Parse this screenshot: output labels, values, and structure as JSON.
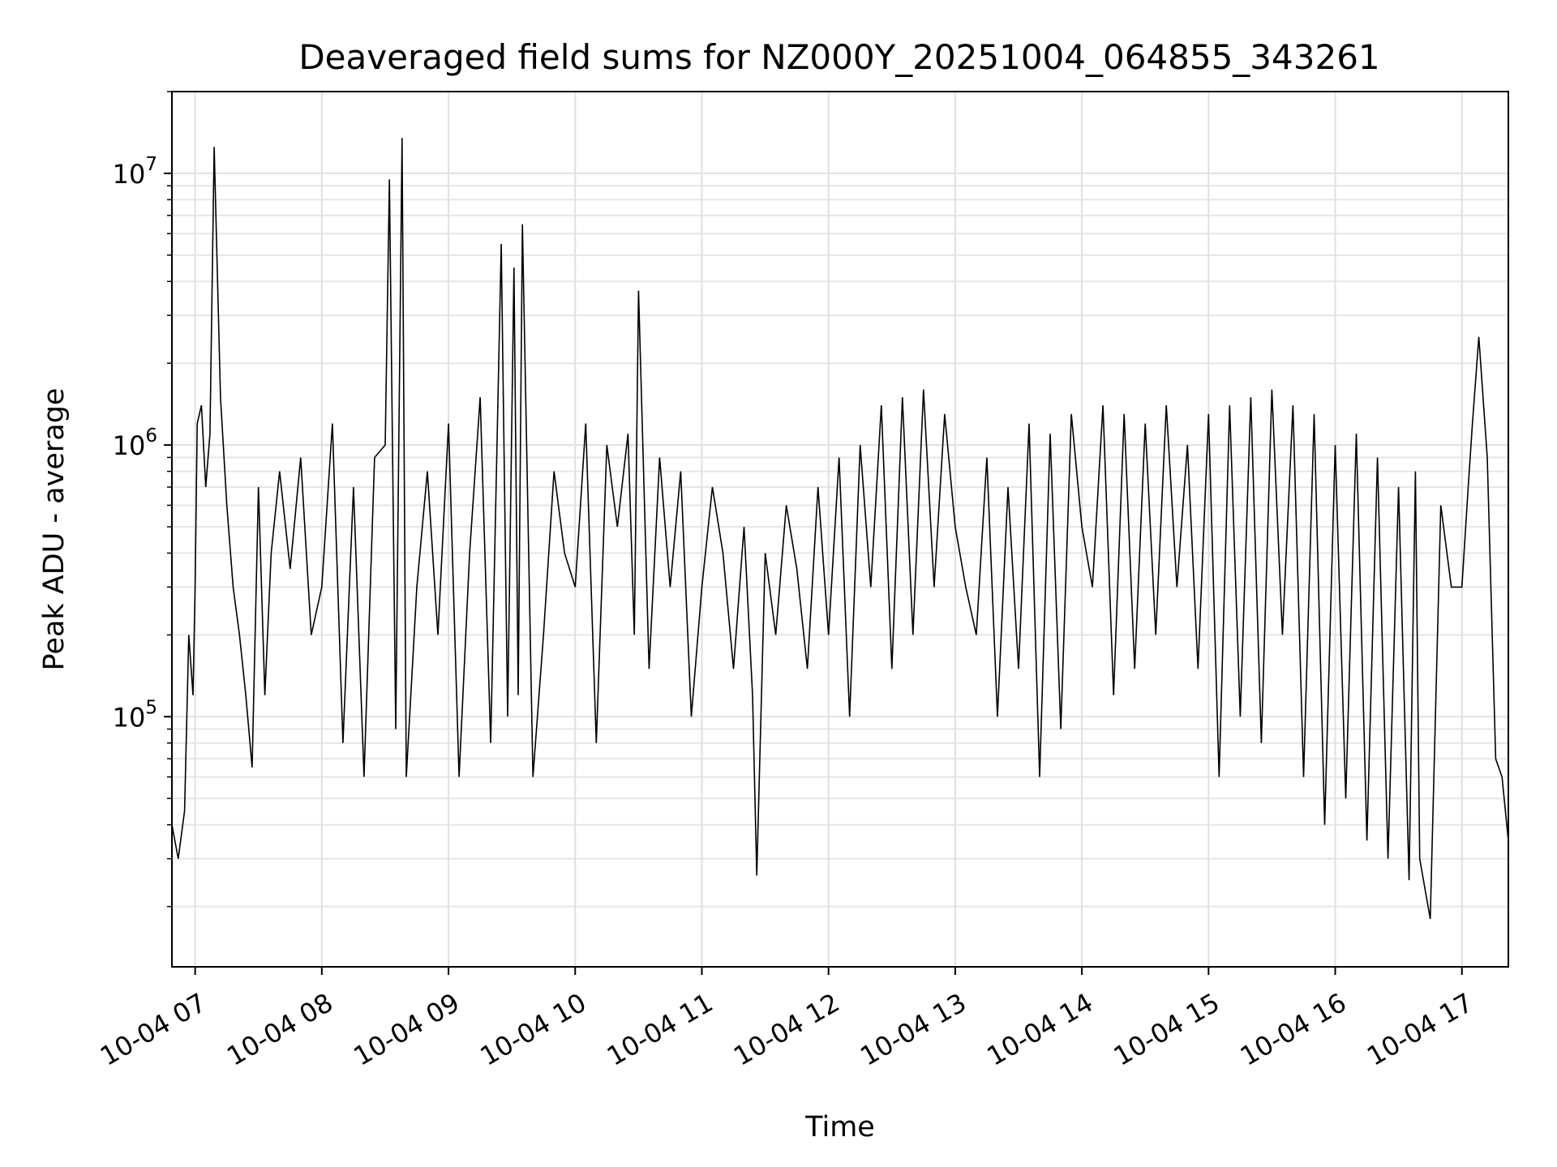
{
  "chart_data": {
    "type": "line",
    "title": "Deaveraged field sums for NZ000Y_20251004_064855_343261",
    "xlabel": "Time",
    "ylabel": "Peak ADU - average",
    "yscale": "log",
    "grid": true,
    "ylim": [
      12000,
      20000000
    ],
    "xlim": [
      "2025-10-04 06:49",
      "2025-10-04 17:22"
    ],
    "x_ticks": [
      {
        "t": "2025-10-04 07:00",
        "label": "10-04 07"
      },
      {
        "t": "2025-10-04 08:00",
        "label": "10-04 08"
      },
      {
        "t": "2025-10-04 09:00",
        "label": "10-04 09"
      },
      {
        "t": "2025-10-04 10:00",
        "label": "10-04 10"
      },
      {
        "t": "2025-10-04 11:00",
        "label": "10-04 11"
      },
      {
        "t": "2025-10-04 12:00",
        "label": "10-04 12"
      },
      {
        "t": "2025-10-04 13:00",
        "label": "10-04 13"
      },
      {
        "t": "2025-10-04 14:00",
        "label": "10-04 14"
      },
      {
        "t": "2025-10-04 15:00",
        "label": "10-04 15"
      },
      {
        "t": "2025-10-04 16:00",
        "label": "10-04 16"
      },
      {
        "t": "2025-10-04 17:00",
        "label": "10-04 17"
      }
    ],
    "y_ticks": [
      {
        "value": 100000,
        "base": "10",
        "exp": "5"
      },
      {
        "value": 1000000,
        "base": "10",
        "exp": "6"
      },
      {
        "value": 10000000,
        "base": "10",
        "exp": "7"
      }
    ],
    "series": [
      {
        "color": "#000000",
        "x": [
          "2025-10-04 06:49",
          "2025-10-04 06:52",
          "2025-10-04 06:55",
          "2025-10-04 06:57",
          "2025-10-04 06:59",
          "2025-10-04 07:00",
          "2025-10-04 07:01",
          "2025-10-04 07:03",
          "2025-10-04 07:05",
          "2025-10-04 07:07",
          "2025-10-04 07:09",
          "2025-10-04 07:12",
          "2025-10-04 07:15",
          "2025-10-04 07:18",
          "2025-10-04 07:21",
          "2025-10-04 07:24",
          "2025-10-04 07:27",
          "2025-10-04 07:30",
          "2025-10-04 07:33",
          "2025-10-04 07:36",
          "2025-10-04 07:40",
          "2025-10-04 07:45",
          "2025-10-04 07:50",
          "2025-10-04 07:55",
          "2025-10-04 08:00",
          "2025-10-04 08:05",
          "2025-10-04 08:10",
          "2025-10-04 08:15",
          "2025-10-04 08:20",
          "2025-10-04 08:25",
          "2025-10-04 08:30",
          "2025-10-04 08:32",
          "2025-10-04 08:35",
          "2025-10-04 08:38",
          "2025-10-04 08:40",
          "2025-10-04 08:45",
          "2025-10-04 08:50",
          "2025-10-04 08:55",
          "2025-10-04 09:00",
          "2025-10-04 09:05",
          "2025-10-04 09:10",
          "2025-10-04 09:15",
          "2025-10-04 09:20",
          "2025-10-04 09:25",
          "2025-10-04 09:28",
          "2025-10-04 09:31",
          "2025-10-04 09:33",
          "2025-10-04 09:35",
          "2025-10-04 09:40",
          "2025-10-04 09:45",
          "2025-10-04 09:50",
          "2025-10-04 09:55",
          "2025-10-04 10:00",
          "2025-10-04 10:05",
          "2025-10-04 10:10",
          "2025-10-04 10:15",
          "2025-10-04 10:20",
          "2025-10-04 10:25",
          "2025-10-04 10:28",
          "2025-10-04 10:30",
          "2025-10-04 10:35",
          "2025-10-04 10:40",
          "2025-10-04 10:45",
          "2025-10-04 10:50",
          "2025-10-04 10:55",
          "2025-10-04 11:00",
          "2025-10-04 11:05",
          "2025-10-04 11:10",
          "2025-10-04 11:15",
          "2025-10-04 11:20",
          "2025-10-04 11:24",
          "2025-10-04 11:26",
          "2025-10-04 11:30",
          "2025-10-04 11:35",
          "2025-10-04 11:40",
          "2025-10-04 11:45",
          "2025-10-04 11:50",
          "2025-10-04 11:55",
          "2025-10-04 12:00",
          "2025-10-04 12:05",
          "2025-10-04 12:10",
          "2025-10-04 12:15",
          "2025-10-04 12:20",
          "2025-10-04 12:25",
          "2025-10-04 12:30",
          "2025-10-04 12:35",
          "2025-10-04 12:40",
          "2025-10-04 12:45",
          "2025-10-04 12:50",
          "2025-10-04 12:55",
          "2025-10-04 13:00",
          "2025-10-04 13:05",
          "2025-10-04 13:10",
          "2025-10-04 13:15",
          "2025-10-04 13:20",
          "2025-10-04 13:25",
          "2025-10-04 13:30",
          "2025-10-04 13:35",
          "2025-10-04 13:40",
          "2025-10-04 13:45",
          "2025-10-04 13:50",
          "2025-10-04 13:55",
          "2025-10-04 14:00",
          "2025-10-04 14:05",
          "2025-10-04 14:10",
          "2025-10-04 14:15",
          "2025-10-04 14:20",
          "2025-10-04 14:25",
          "2025-10-04 14:30",
          "2025-10-04 14:35",
          "2025-10-04 14:40",
          "2025-10-04 14:45",
          "2025-10-04 14:50",
          "2025-10-04 14:55",
          "2025-10-04 15:00",
          "2025-10-04 15:05",
          "2025-10-04 15:10",
          "2025-10-04 15:15",
          "2025-10-04 15:20",
          "2025-10-04 15:25",
          "2025-10-04 15:30",
          "2025-10-04 15:35",
          "2025-10-04 15:40",
          "2025-10-04 15:45",
          "2025-10-04 15:50",
          "2025-10-04 15:55",
          "2025-10-04 16:00",
          "2025-10-04 16:05",
          "2025-10-04 16:10",
          "2025-10-04 16:15",
          "2025-10-04 16:20",
          "2025-10-04 16:25",
          "2025-10-04 16:30",
          "2025-10-04 16:35",
          "2025-10-04 16:38",
          "2025-10-04 16:40",
          "2025-10-04 16:45",
          "2025-10-04 16:50",
          "2025-10-04 16:55",
          "2025-10-04 17:00",
          "2025-10-04 17:03",
          "2025-10-04 17:05",
          "2025-10-04 17:08",
          "2025-10-04 17:12",
          "2025-10-04 17:16",
          "2025-10-04 17:19",
          "2025-10-04 17:22"
        ],
        "y": [
          40000,
          30000,
          45000,
          200000,
          120000,
          300000,
          1200000,
          1400000,
          700000,
          1100000,
          12500000,
          1500000,
          600000,
          300000,
          200000,
          120000,
          65000,
          700000,
          120000,
          400000,
          800000,
          350000,
          900000,
          200000,
          300000,
          1200000,
          80000,
          700000,
          60000,
          900000,
          1000000,
          9500000,
          90000,
          13500000,
          60000,
          300000,
          800000,
          200000,
          1200000,
          60000,
          400000,
          1500000,
          80000,
          5500000,
          100000,
          4500000,
          120000,
          6500000,
          60000,
          200000,
          800000,
          400000,
          300000,
          1200000,
          80000,
          1000000,
          500000,
          1100000,
          200000,
          3700000,
          150000,
          900000,
          300000,
          800000,
          100000,
          300000,
          700000,
          400000,
          150000,
          500000,
          120000,
          26000,
          400000,
          200000,
          600000,
          350000,
          150000,
          700000,
          200000,
          900000,
          100000,
          1000000,
          300000,
          1400000,
          150000,
          1500000,
          200000,
          1600000,
          300000,
          1300000,
          500000,
          300000,
          200000,
          900000,
          100000,
          700000,
          150000,
          1200000,
          60000,
          1100000,
          90000,
          1300000,
          500000,
          300000,
          1400000,
          120000,
          1300000,
          150000,
          1200000,
          200000,
          1400000,
          300000,
          1000000,
          150000,
          1300000,
          60000,
          1400000,
          100000,
          1500000,
          80000,
          1600000,
          200000,
          1400000,
          60000,
          1300000,
          40000,
          1000000,
          50000,
          1100000,
          35000,
          900000,
          30000,
          700000,
          25000,
          800000,
          30000,
          18000,
          600000,
          300000,
          300000,
          700000,
          1200000,
          2500000,
          900000,
          70000,
          60000,
          35000
        ]
      }
    ]
  }
}
